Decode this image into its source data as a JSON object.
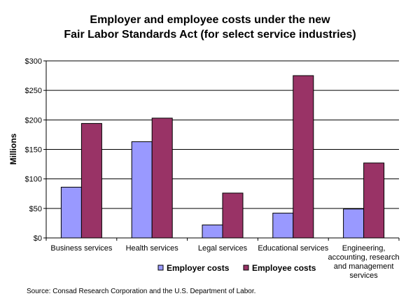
{
  "chart_data": {
    "type": "bar",
    "title_lines": [
      "Employer and employee costs under the new",
      "Fair Labor Standards Act (for select service industries)"
    ],
    "ylabel": "Millions",
    "ylim": [
      0,
      300
    ],
    "yticks": [
      0,
      50,
      100,
      150,
      200,
      250,
      300
    ],
    "ytick_labels": [
      "$0",
      "$50",
      "$100",
      "$150",
      "$200",
      "$250",
      "$300"
    ],
    "grid": true,
    "legend_position": "bottom",
    "categories": [
      [
        "Business services"
      ],
      [
        "Health services"
      ],
      [
        "Legal services"
      ],
      [
        "Educational services"
      ],
      [
        "Engineering,",
        "accounting, research",
        "and management",
        "services"
      ]
    ],
    "series": [
      {
        "name": "Employer costs",
        "color": "#9999ff",
        "values": [
          86,
          163,
          22,
          42,
          49
        ]
      },
      {
        "name": "Employee costs",
        "color": "#993366",
        "values": [
          194,
          203,
          76,
          275,
          127
        ]
      }
    ]
  },
  "source": "Source: Consad Research Corporation and the U.S. Department of Labor."
}
